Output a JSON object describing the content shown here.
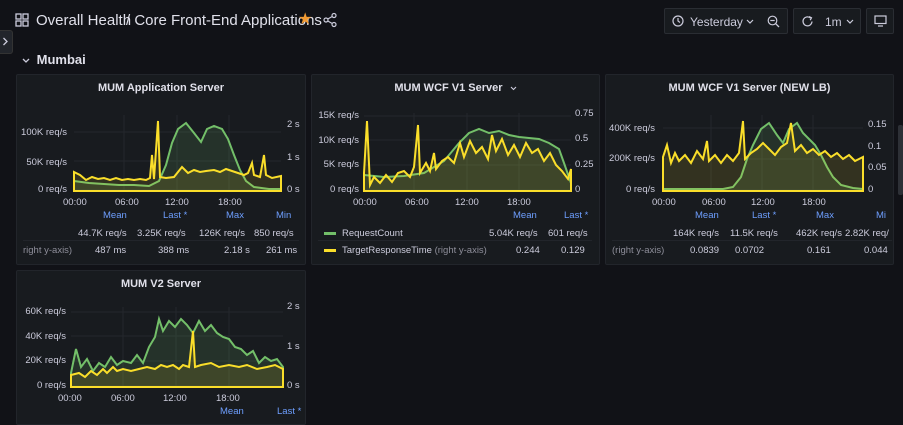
{
  "colors": {
    "bg": "#111217",
    "panel": "#181b1f",
    "green": "#73bf69",
    "yellow": "#fade2a",
    "blue": "#6e9fff",
    "star": "#f29b34"
  },
  "breadcrumb": {
    "folder": "Overall Health",
    "dashboard": "/ Core Front-End Applications",
    "icon": "apps-icon"
  },
  "toolbar": {
    "time_range": "Yesterday",
    "refresh_interval": "1m",
    "icons": [
      "clock-icon",
      "chevron-down-icon",
      "zoom-out-icon",
      "refresh-icon",
      "monitor-icon",
      "share-icon",
      "star-icon"
    ]
  },
  "row": {
    "title": "Mumbai"
  },
  "x_ticks": [
    "00:00",
    "06:00",
    "12:00",
    "18:00"
  ],
  "panels": {
    "mum_app": {
      "title": "MUM Application Server",
      "y_left": [
        "100K req/s",
        "50K req/s",
        "0 req/s"
      ],
      "y_right": [
        "2 s",
        "1 s",
        "0 s"
      ],
      "legend_headers": [
        "Mean",
        "Last *",
        "Max",
        "Min"
      ],
      "rows": [
        {
          "label": "",
          "values": [
            "44.7K req/s",
            "3.25K req/s",
            "126K req/s",
            "850 req/s"
          ]
        },
        {
          "label": "right y-axis)",
          "values": [
            "487 ms",
            "388 ms",
            "2.18 s",
            "261 ms"
          ]
        }
      ]
    },
    "mum_wcf_v1": {
      "title": "MUM WCF V1 Server",
      "y_left": [
        "15K req/s",
        "10K req/s",
        "5K req/s",
        "0 req/s"
      ],
      "y_right": [
        "0.75",
        "0.5",
        "0.25",
        "0"
      ],
      "legend_headers": [
        "Mean",
        "Last *"
      ],
      "series": [
        {
          "name": "RequestCount",
          "suffix": "",
          "values": [
            "5.04K req/s",
            "601 req/s"
          ]
        },
        {
          "name": "TargetResponseTime",
          "suffix": "(right y-axis)",
          "values": [
            "0.244",
            "0.129"
          ]
        }
      ]
    },
    "mum_wcf_v1_lb": {
      "title": "MUM WCF V1 Server (NEW LB)",
      "y_left": [
        "400K req/s",
        "200K req/s",
        "0 req/s"
      ],
      "y_right": [
        "0.15",
        "0.1",
        "0.05",
        "0"
      ],
      "legend_headers": [
        "Mean",
        "Last *",
        "Max",
        "Mi"
      ],
      "rows": [
        {
          "label": "",
          "values": [
            "164K req/s",
            "11.5K req/s",
            "462K req/s",
            "2.82K req/"
          ]
        },
        {
          "label": "(right y-axis)",
          "values": [
            "0.0839",
            "0.0702",
            "0.161",
            "0.044"
          ]
        }
      ]
    },
    "mum_v2": {
      "title": "MUM V2 Server",
      "y_left": [
        "60K req/s",
        "40K req/s",
        "20K req/s",
        "0 req/s"
      ],
      "y_right": [
        "2 s",
        "1 s",
        "0 s"
      ],
      "legend_headers": [
        "Mean",
        "Last *"
      ]
    }
  }
}
